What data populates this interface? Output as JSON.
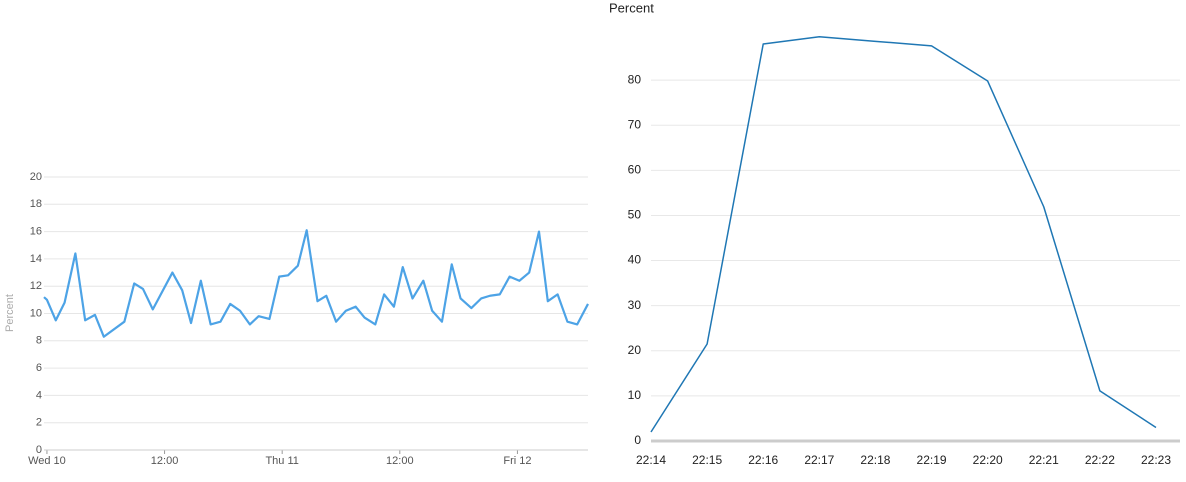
{
  "chart_data": [
    {
      "type": "line",
      "ylabel": "Percent",
      "color": "#4da3e6",
      "x": [
        -0.3,
        0,
        0.9,
        1.8,
        2.9,
        3.9,
        4.9,
        5.8,
        7.9,
        8.9,
        9.8,
        10.8,
        12.8,
        13.8,
        14.7,
        15.7,
        16.7,
        17.7,
        18.7,
        19.7,
        20.7,
        21.6,
        22.7,
        23.7,
        24.6,
        25.6,
        26.5,
        27.6,
        28.5,
        29.5,
        30.5,
        31.5,
        32.4,
        33.5,
        34.4,
        35.4,
        36.3,
        37.3,
        38.4,
        39.3,
        40.3,
        41.3,
        42.2,
        43.3,
        44.3,
        45.2,
        46.2,
        47.2,
        48.2,
        49.2,
        50.2,
        51.1,
        52.1,
        53.1,
        54.1,
        55.2
      ],
      "values": [
        11.2,
        11.0,
        9.5,
        10.8,
        14.4,
        9.5,
        9.9,
        8.3,
        9.4,
        12.2,
        11.8,
        10.3,
        13.0,
        11.7,
        9.3,
        12.4,
        9.2,
        9.4,
        10.7,
        10.2,
        9.2,
        9.8,
        9.6,
        12.7,
        12.8,
        13.5,
        16.1,
        10.9,
        11.3,
        9.4,
        10.2,
        10.5,
        9.7,
        9.2,
        11.4,
        10.5,
        13.4,
        11.1,
        12.4,
        10.2,
        9.4,
        13.6,
        11.1,
        10.4,
        11.1,
        11.3,
        11.4,
        12.7,
        12.4,
        13.0,
        16.0,
        10.9,
        11.4,
        9.4,
        9.2,
        10.7
      ],
      "xlim": [
        -0.3,
        55.2
      ],
      "xticks": [
        {
          "value": 0,
          "label": "Wed 10"
        },
        {
          "value": 12,
          "label": "12:00"
        },
        {
          "value": 24,
          "label": "Thu 11"
        },
        {
          "value": 36,
          "label": "12:00"
        },
        {
          "value": 48,
          "label": "Fri 12"
        }
      ],
      "ylim": [
        0,
        20
      ],
      "yticks": [
        0,
        2,
        4,
        6,
        8,
        10,
        12,
        14,
        16,
        18,
        20
      ],
      "grid": true
    },
    {
      "type": "line",
      "title": "Percent",
      "color": "#1f77b4",
      "categories": [
        "22:14",
        "22:15",
        "22:16",
        "22:17",
        "22:18",
        "22:19",
        "22:20",
        "22:21",
        "22:22",
        "22:23"
      ],
      "values": [
        2,
        21.5,
        88,
        89.6,
        88.6,
        87.6,
        79.8,
        51.9,
        11.1,
        3
      ],
      "ylim": [
        0,
        90
      ],
      "yticks": [
        0,
        10,
        20,
        30,
        40,
        50,
        60,
        70,
        80
      ],
      "grid": true
    }
  ]
}
